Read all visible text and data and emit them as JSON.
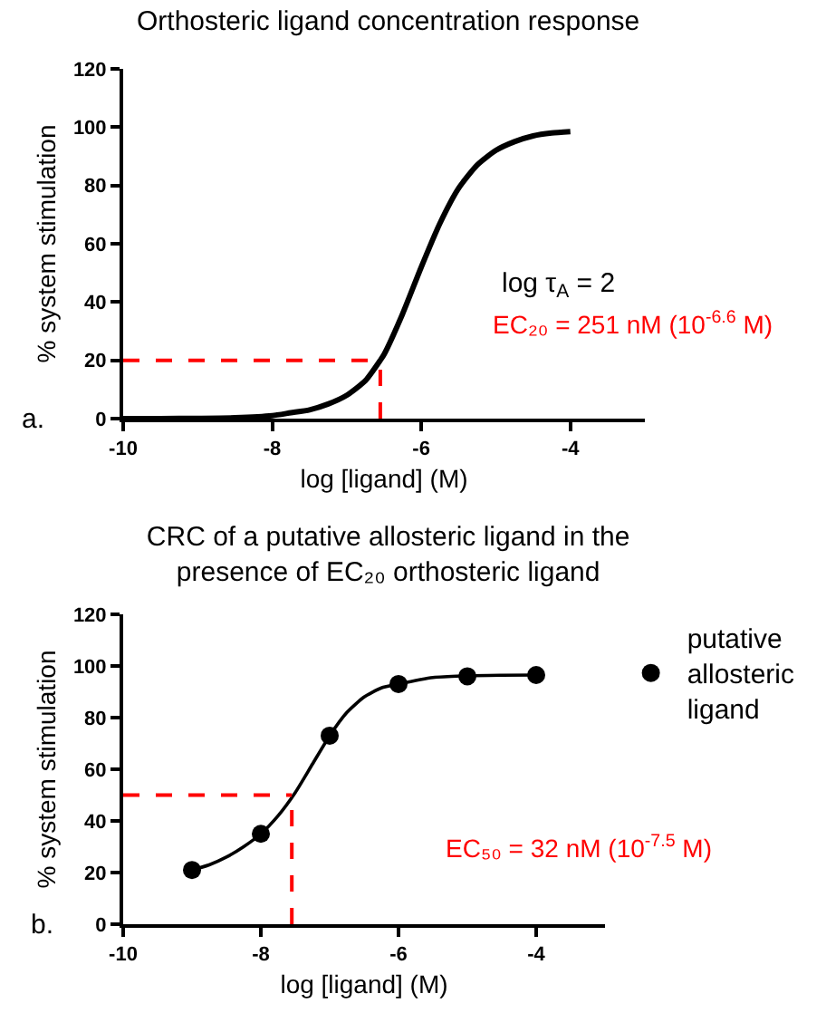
{
  "chart_data": [
    {
      "type": "line",
      "title": "Orthosteric ligand concentration response",
      "xlabel": "log [ligand] (M)",
      "ylabel": "% system stimulation",
      "xlim": [
        -10,
        -3
      ],
      "ylim": [
        0,
        120
      ],
      "xticks": [
        -10,
        -8,
        -6,
        -4
      ],
      "yticks": [
        0,
        20,
        40,
        60,
        80,
        100,
        120
      ],
      "grid": false,
      "legend": false,
      "line_style": "solid",
      "series": [
        {
          "color": "#000000",
          "x": [
            -10,
            -9.5,
            -9,
            -8.5,
            -8,
            -7.75,
            -7.5,
            -7.25,
            -7,
            -6.75,
            -6.55,
            -6.5,
            -6.25,
            -6,
            -5.75,
            -5.5,
            -5.25,
            -5,
            -4.75,
            -4.5,
            -4.25,
            -4
          ],
          "values": [
            0,
            0,
            0.1,
            0.3,
            1,
            2,
            3,
            5,
            8,
            13,
            20,
            22,
            36,
            52,
            67,
            79,
            87,
            92,
            95,
            97,
            98,
            98.5
          ]
        }
      ],
      "ref_lines": [
        {
          "axis": "y",
          "value": 20,
          "color": "#ff0000",
          "line_style": "dashed"
        },
        {
          "axis": "x",
          "value": -6.55,
          "color": "#ff0000",
          "line_style": "dashed",
          "label": "EC₂₀ = 251 nM (10$^{-6.6}$ M)"
        }
      ],
      "annotations": [
        "a.",
        "log τ$_{A}$ = 2"
      ]
    },
    {
      "type": "scatter",
      "title": "CRC of a putative allosteric ligand in the\npresence of EC₂₀ orthosteric ligand",
      "xlabel": "log [ligand] (M)",
      "ylabel": "% system stimulation",
      "xlim": [
        -10,
        -3
      ],
      "ylim": [
        0,
        120
      ],
      "xticks": [
        -10,
        -8,
        -6,
        -4
      ],
      "yticks": [
        0,
        20,
        40,
        60,
        80,
        100,
        120
      ],
      "grid": false,
      "legend": "right",
      "series": [
        {
          "name": "putative allosteric ligand",
          "color": "#000000",
          "marker": "circle",
          "x": [
            -9,
            -8,
            -7,
            -6,
            -5,
            -4
          ],
          "values": [
            21,
            35,
            73,
            93,
            96,
            96.5
          ]
        },
        {
          "type": "line",
          "color": "#000000",
          "marker": "none",
          "x": [
            -9,
            -8.75,
            -8.5,
            -8.25,
            -8,
            -7.75,
            -7.5,
            -7.25,
            -7,
            -6.75,
            -6.5,
            -6.25,
            -6,
            -5.5,
            -5,
            -4.5,
            -4
          ],
          "values": [
            21,
            23,
            26,
            30,
            35,
            42,
            51,
            62,
            73,
            82,
            88,
            91.5,
            93,
            95.5,
            96.2,
            96.4,
            96.5
          ]
        }
      ],
      "ref_lines": [
        {
          "axis": "y",
          "value": 50,
          "color": "#ff0000",
          "line_style": "dashed"
        },
        {
          "axis": "x",
          "value": -7.55,
          "color": "#ff0000",
          "line_style": "dashed",
          "label": "EC₅₀ = 32 nM (10$^{-7.5}$ M)"
        }
      ],
      "annotations": [
        "b."
      ]
    }
  ]
}
